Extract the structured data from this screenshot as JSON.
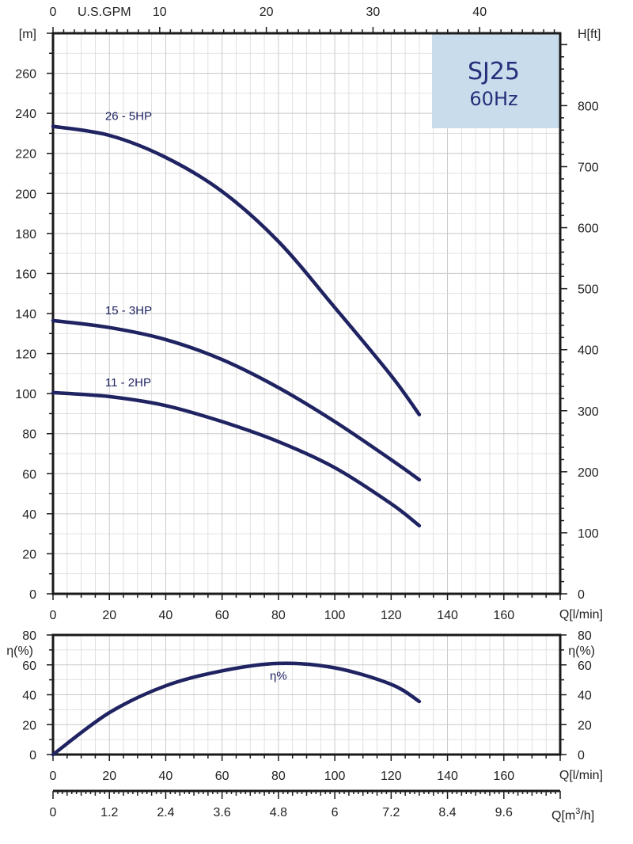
{
  "chart_data": [
    {
      "type": "line",
      "title": "SJ25",
      "subtitle": "60Hz",
      "x_unit_label": "Q[l/min]",
      "xlim": [
        0,
        180
      ],
      "x_ticks": [
        0,
        20,
        40,
        60,
        80,
        100,
        120,
        140,
        160
      ],
      "ylabel_left": "[m]",
      "ylim": [
        0,
        280
      ],
      "y_ticks": [
        0,
        20,
        40,
        60,
        80,
        100,
        120,
        140,
        160,
        180,
        200,
        220,
        240,
        260
      ],
      "ylabel_right": "H[ft]",
      "y_right_ticks": [
        0,
        100,
        200,
        300,
        400,
        500,
        600,
        700,
        800
      ],
      "top_axis_label": "U.S.GPM",
      "top_axis_ticks": [
        0,
        10,
        20,
        30,
        40
      ],
      "series": [
        {
          "name": "26 - 5HP",
          "x": [
            0,
            20,
            40,
            60,
            80,
            100,
            120,
            130
          ],
          "y": [
            233.5,
            229,
            218,
            201,
            176,
            143,
            109,
            89.5
          ]
        },
        {
          "name": "15 - 3HP",
          "x": [
            0,
            20,
            40,
            60,
            80,
            100,
            120,
            130
          ],
          "y": [
            136.5,
            133,
            127,
            117,
            103,
            86,
            67,
            57
          ]
        },
        {
          "name": "11 - 2HP",
          "x": [
            0,
            20,
            40,
            60,
            80,
            100,
            120,
            130
          ],
          "y": [
            100.5,
            98.5,
            94,
            86,
            76,
            63,
            45,
            34
          ]
        }
      ]
    },
    {
      "type": "line",
      "x_unit_label": "Q[l/min]",
      "xlim": [
        0,
        180
      ],
      "x_ticks": [
        0,
        20,
        40,
        60,
        80,
        100,
        120,
        140,
        160
      ],
      "ylabel_left": "η(%)",
      "ylabel_right": "η(%)",
      "ylim": [
        0,
        80
      ],
      "y_ticks": [
        0,
        20,
        40,
        60,
        80
      ],
      "series": [
        {
          "name": "η%",
          "x": [
            0,
            20,
            40,
            60,
            80,
            100,
            120,
            130
          ],
          "y": [
            0,
            28,
            46,
            56,
            61,
            58,
            47,
            35.5
          ]
        }
      ]
    },
    {
      "type": "axis",
      "label_prefix": "Q[m",
      "label_sup": "3",
      "label_suffix": "/h]",
      "ticks": [
        "0",
        "1.2",
        "2.4",
        "3.6",
        "4.8",
        "6",
        "7.2",
        "8.4",
        "9.6"
      ]
    }
  ]
}
